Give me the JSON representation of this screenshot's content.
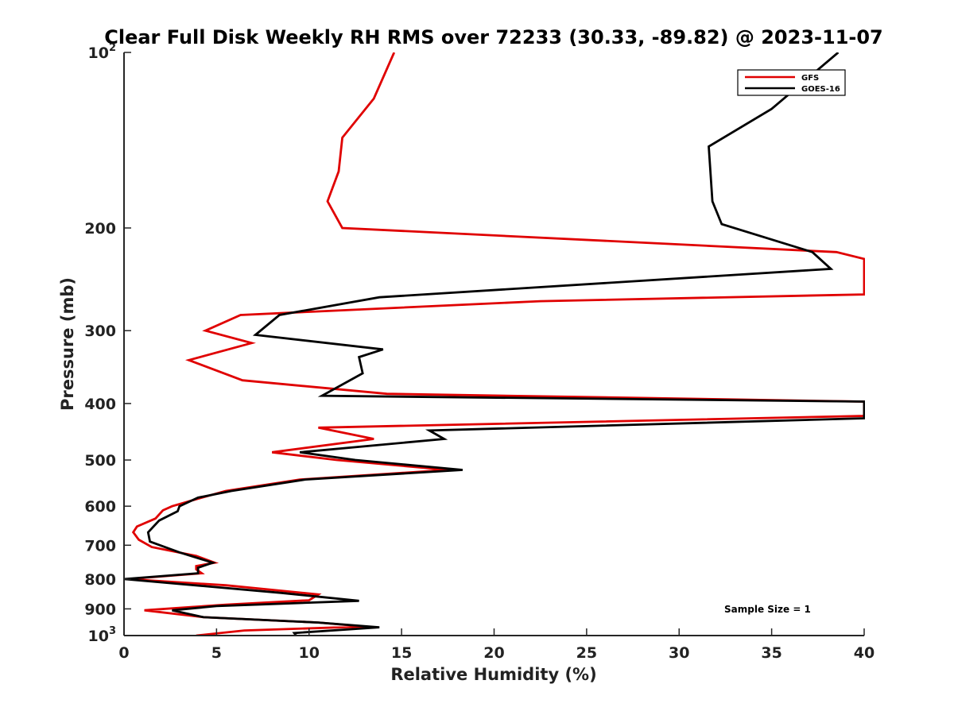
{
  "chart_data": {
    "type": "line",
    "title": "Clear Full Disk Weekly RH RMS over 72233 (30.33, -89.82) @ 2023-11-07",
    "xlabel": "Relative Humidity (%)",
    "ylabel": "Pressure (mb)",
    "xlim": [
      0,
      40
    ],
    "ylim": [
      100,
      1000
    ],
    "y_scale": "log",
    "y_reversed": true,
    "grid": false,
    "legend_position": "top-right",
    "x_ticks": [
      0,
      5,
      10,
      15,
      20,
      25,
      30,
      35,
      40
    ],
    "y_ticks": [
      {
        "value": 100,
        "label": "10",
        "sup": "2"
      },
      {
        "value": 200,
        "label": "200",
        "sup": ""
      },
      {
        "value": 300,
        "label": "300",
        "sup": ""
      },
      {
        "value": 400,
        "label": "400",
        "sup": ""
      },
      {
        "value": 500,
        "label": "500",
        "sup": ""
      },
      {
        "value": 600,
        "label": "600",
        "sup": ""
      },
      {
        "value": 700,
        "label": "700",
        "sup": ""
      },
      {
        "value": 800,
        "label": "800",
        "sup": ""
      },
      {
        "value": 900,
        "label": "900",
        "sup": ""
      },
      {
        "value": 1000,
        "label": "10",
        "sup": "3"
      }
    ],
    "annotation": "Sample Size = 1",
    "series": [
      {
        "name": "GFS",
        "color": "#e00000",
        "points": [
          [
            14.6,
            100
          ],
          [
            13.5,
            120
          ],
          [
            11.8,
            140
          ],
          [
            11.6,
            160
          ],
          [
            11.0,
            180
          ],
          [
            11.8,
            200
          ],
          [
            38.5,
            220
          ],
          [
            40,
            226
          ],
          [
            40,
            260
          ],
          [
            22.5,
            267
          ],
          [
            6.3,
            282
          ],
          [
            4.4,
            300
          ],
          [
            6.9,
            315
          ],
          [
            3.5,
            337
          ],
          [
            6.4,
            365
          ],
          [
            14.2,
            385
          ],
          [
            40,
            397
          ],
          [
            40,
            420
          ],
          [
            10.5,
            440
          ],
          [
            13.5,
            460
          ],
          [
            8.0,
            485
          ],
          [
            11.5,
            500
          ],
          [
            17.5,
            520
          ],
          [
            9.5,
            540
          ],
          [
            5.5,
            565
          ],
          [
            4.2,
            580
          ],
          [
            2.6,
            600
          ],
          [
            2.1,
            610
          ],
          [
            1.7,
            630
          ],
          [
            0.7,
            650
          ],
          [
            0.5,
            665
          ],
          [
            0.8,
            685
          ],
          [
            1.5,
            705
          ],
          [
            3.9,
            730
          ],
          [
            4.9,
            750
          ],
          [
            3.9,
            760
          ],
          [
            3.9,
            770
          ],
          [
            4.2,
            782
          ],
          [
            0.2,
            800
          ],
          [
            5.5,
            820
          ],
          [
            10.5,
            850
          ],
          [
            10.0,
            870
          ],
          [
            5.5,
            885
          ],
          [
            1.1,
            905
          ],
          [
            4.3,
            930
          ],
          [
            10.5,
            950
          ],
          [
            13.0,
            965
          ],
          [
            6.5,
            980
          ],
          [
            3.9,
            1000
          ]
        ]
      },
      {
        "name": "GOES-16",
        "color": "#000000",
        "points": [
          [
            38.6,
            100
          ],
          [
            35.0,
            125
          ],
          [
            31.6,
            145
          ],
          [
            31.8,
            180
          ],
          [
            32.3,
            197
          ],
          [
            37.2,
            220
          ],
          [
            38.2,
            235
          ],
          [
            13.8,
            263
          ],
          [
            8.4,
            282
          ],
          [
            7.1,
            305
          ],
          [
            14.0,
            323
          ],
          [
            12.7,
            333
          ],
          [
            12.9,
            355
          ],
          [
            10.7,
            388
          ],
          [
            40,
            397
          ],
          [
            40,
            424
          ],
          [
            16.5,
            445
          ],
          [
            17.3,
            460
          ],
          [
            9.5,
            485
          ],
          [
            12.5,
            500
          ],
          [
            18.3,
            520
          ],
          [
            9.8,
            540
          ],
          [
            5.8,
            565
          ],
          [
            4.0,
            580
          ],
          [
            3.0,
            600
          ],
          [
            2.9,
            612
          ],
          [
            1.9,
            635
          ],
          [
            1.3,
            665
          ],
          [
            1.4,
            690
          ],
          [
            3.0,
            720
          ],
          [
            4.8,
            750
          ],
          [
            4.0,
            765
          ],
          [
            4.0,
            782
          ],
          [
            0.0,
            800
          ],
          [
            8.5,
            845
          ],
          [
            12.7,
            872
          ],
          [
            5.0,
            890
          ],
          [
            2.6,
            905
          ],
          [
            4.3,
            930
          ],
          [
            10.5,
            950
          ],
          [
            13.8,
            968
          ],
          [
            9.2,
            990
          ],
          [
            9.3,
            1000
          ]
        ]
      }
    ]
  }
}
